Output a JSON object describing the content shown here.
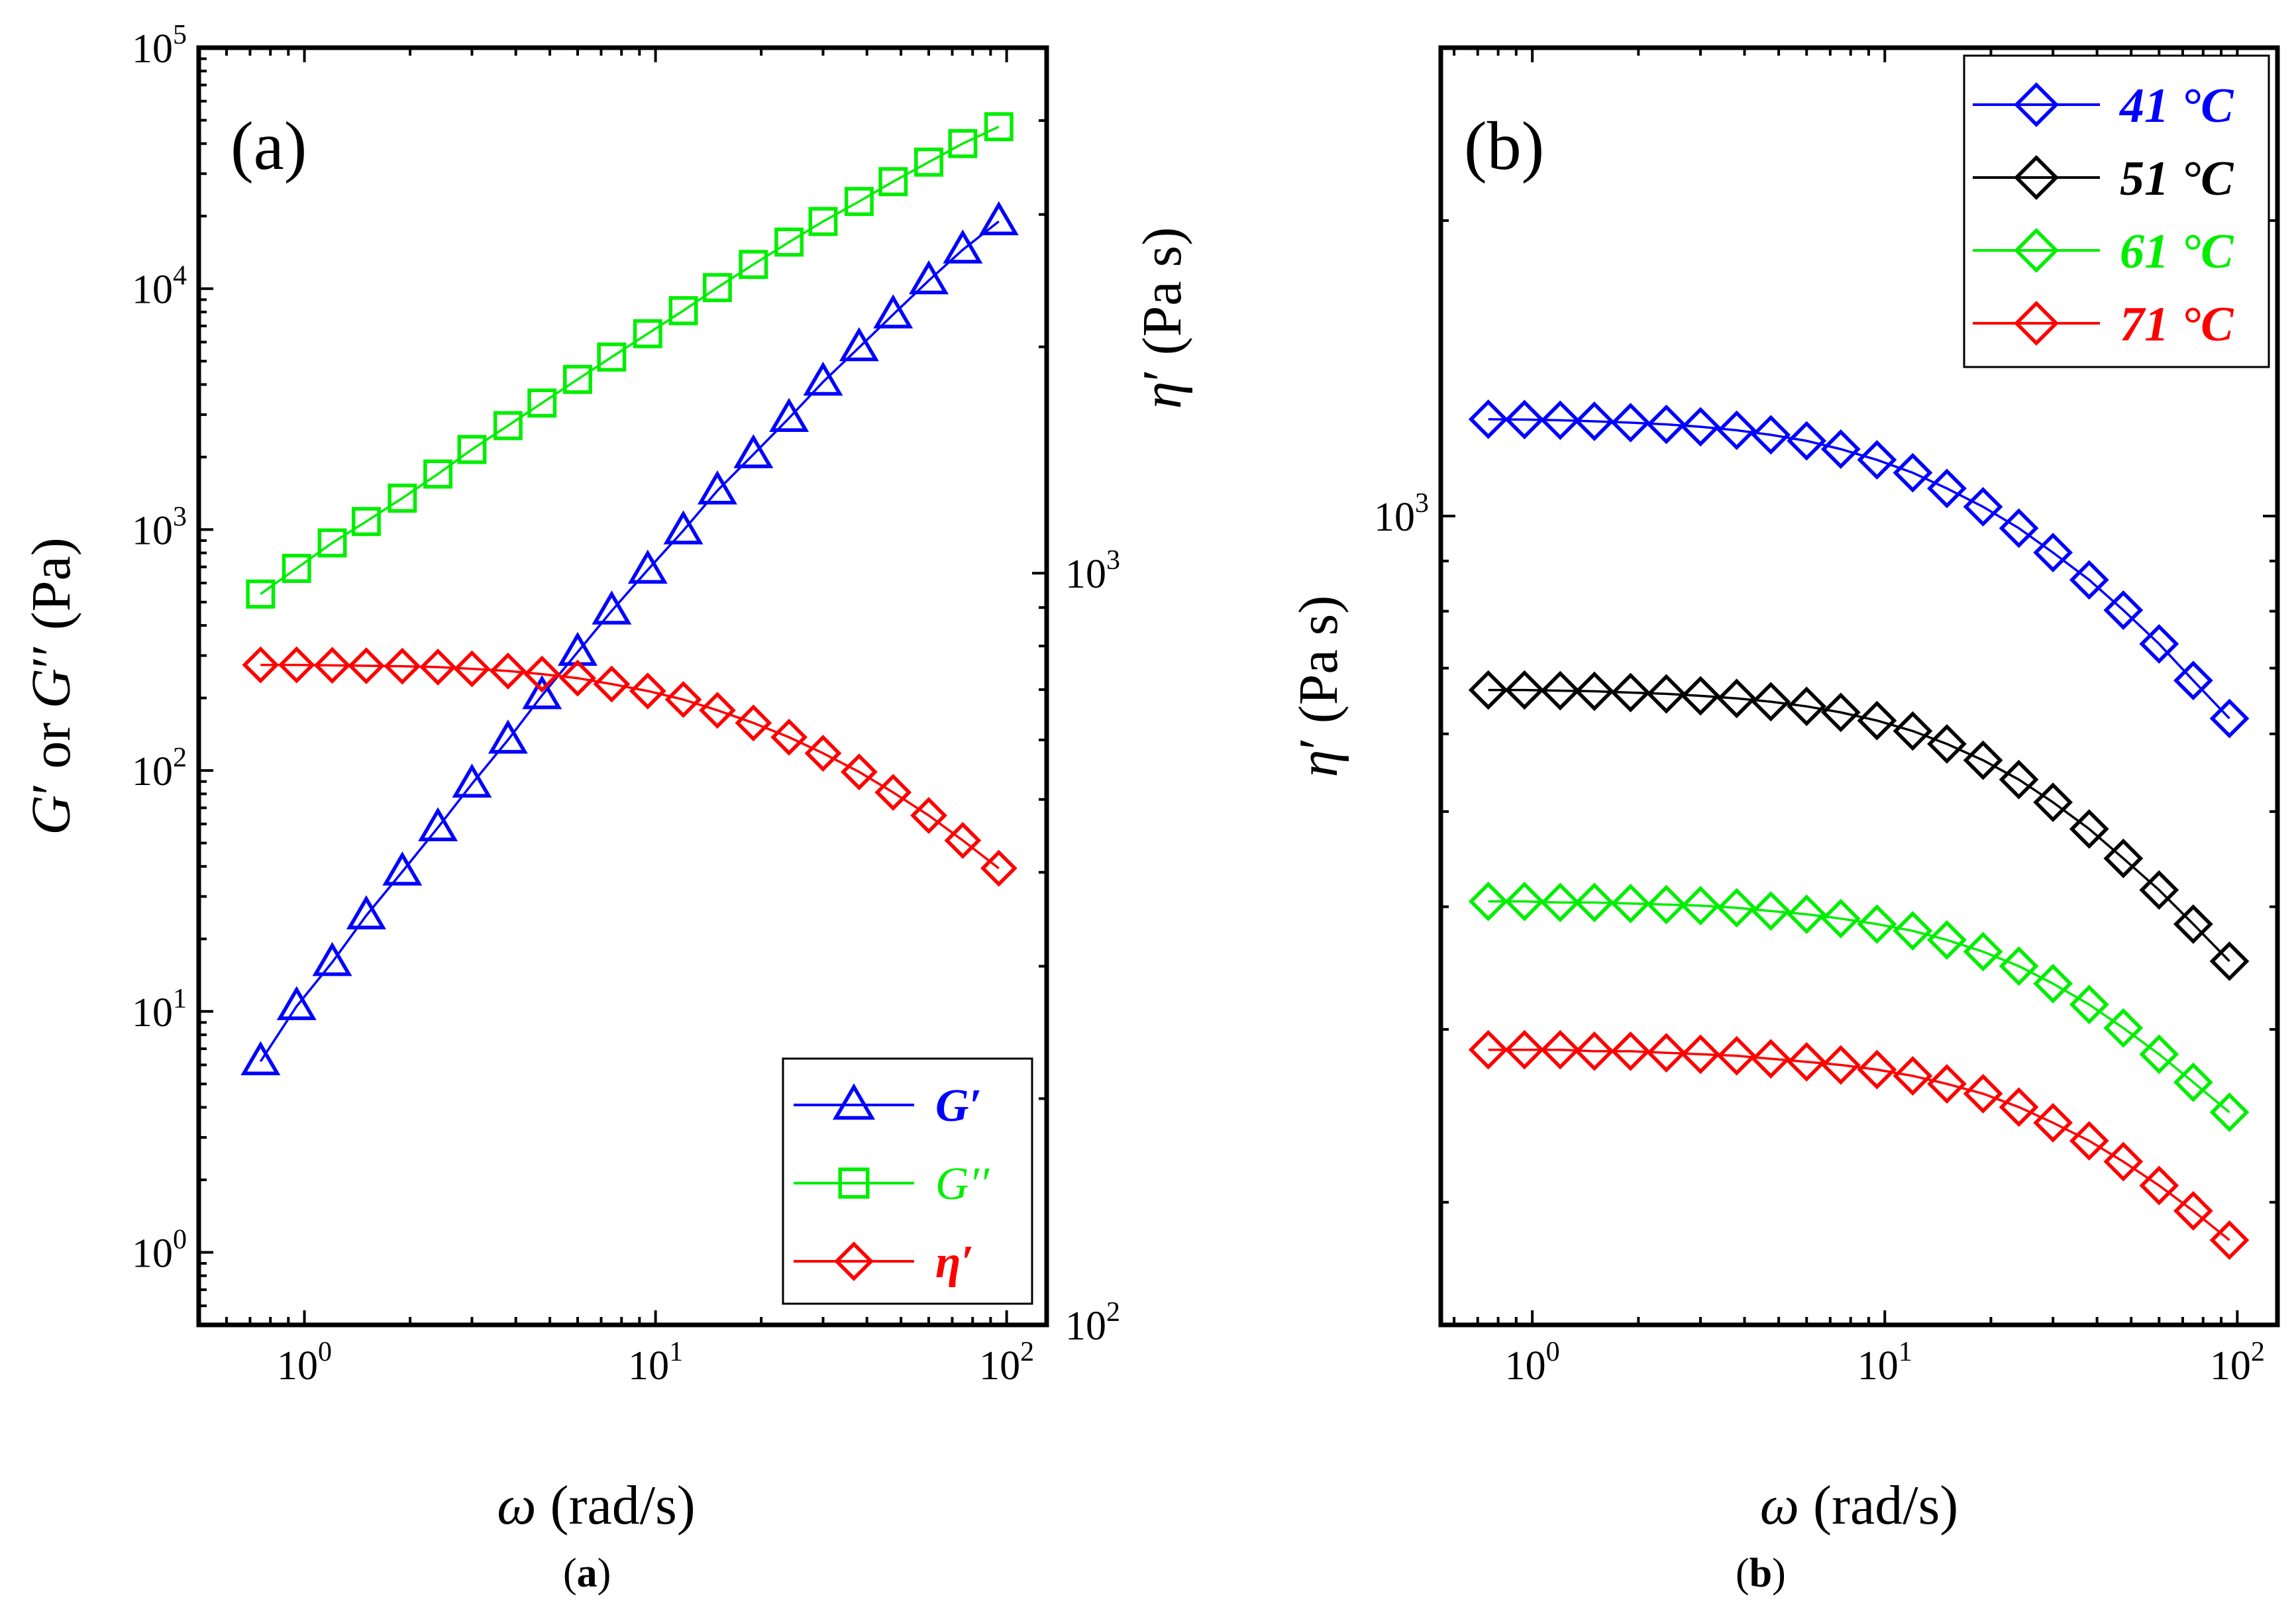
{
  "figure_captions": {
    "a_open": "(",
    "a": "a",
    "a_close": ")",
    "b_open": "(",
    "b": "b",
    "b_close": ")"
  },
  "chart_data": [
    {
      "id": "a",
      "type": "line",
      "panel_label": "(a)",
      "xlabel": {
        "symbol": "ω",
        "text": " (rad/s)"
      },
      "ylabel_left": {
        "g1": "G",
        "p1": "′",
        "or": " or ",
        "g2": "G",
        "p2": "′′",
        "unit": " (Pa)"
      },
      "ylabel_right": {
        "symbol": "η",
        "p": "′",
        "unit": " (Pa s)"
      },
      "x_scale": "log",
      "xlim": [
        0.5,
        130
      ],
      "x_ticks": [
        {
          "value": 1,
          "base": "10",
          "exp": "0"
        },
        {
          "value": 10,
          "base": "10",
          "exp": "1"
        },
        {
          "value": 100,
          "base": "10",
          "exp": "2"
        }
      ],
      "y_left_scale": "log",
      "y_left_lim": [
        0.5,
        100000
      ],
      "y_left_ticks": [
        {
          "value": 1,
          "base": "10",
          "exp": "0"
        },
        {
          "value": 10,
          "base": "10",
          "exp": "1"
        },
        {
          "value": 100,
          "base": "10",
          "exp": "2"
        },
        {
          "value": 1000,
          "base": "10",
          "exp": "3"
        },
        {
          "value": 10000,
          "base": "10",
          "exp": "4"
        },
        {
          "value": 100000,
          "base": "10",
          "exp": "5"
        }
      ],
      "y_right_scale": "log",
      "y_right_lim": [
        100,
        5000
      ],
      "y_right_ticks": [
        {
          "value": 100,
          "base": "10",
          "exp": "2"
        },
        {
          "value": 1000,
          "base": "10",
          "exp": "3"
        }
      ],
      "x": [
        0.75,
        0.95,
        1.2,
        1.5,
        1.9,
        2.4,
        3.0,
        3.8,
        4.75,
        6.0,
        7.5,
        9.5,
        12,
        15,
        19,
        24,
        30,
        38,
        47.5,
        60,
        75,
        95
      ],
      "legend_position": "bottom-right",
      "series": [
        {
          "name": "G′",
          "legend_style": "bold-italic",
          "axis": "left",
          "marker": "triangle",
          "color": "#0000ff",
          "values": [
            6.2,
            10.5,
            16,
            25,
            38,
            58,
            88,
            134,
            205,
            310,
            460,
            680,
            990,
            1450,
            2050,
            2900,
            4100,
            5700,
            7800,
            10800,
            14500,
            19000
          ]
        },
        {
          "name": "G′′",
          "legend_style": "italic",
          "axis": "left",
          "marker": "square",
          "color": "#00ee00",
          "values": [
            540,
            690,
            880,
            1080,
            1350,
            1700,
            2150,
            2700,
            3350,
            4200,
            5200,
            6500,
            8100,
            10100,
            12600,
            15600,
            19000,
            23000,
            27800,
            33500,
            40000,
            47000
          ]
        },
        {
          "name": "η′",
          "legend_style": "bold-italic",
          "axis": "right",
          "marker": "diamond",
          "color": "#ff0000",
          "values": [
            755,
            755,
            754,
            753,
            752,
            750,
            746,
            741,
            734,
            725,
            712,
            697,
            679,
            657,
            632,
            605,
            576,
            544,
            511,
            476,
            441,
            405
          ]
        }
      ]
    },
    {
      "id": "b",
      "type": "line",
      "panel_label": "(b)",
      "xlabel": {
        "symbol": "ω",
        "text": " (rad/s)"
      },
      "ylabel": {
        "symbol": "η",
        "p": "′",
        "unit": " (Pa s)"
      },
      "x_scale": "log",
      "xlim": [
        0.55,
        130
      ],
      "x_ticks": [
        {
          "value": 1,
          "base": "10",
          "exp": "0"
        },
        {
          "value": 10,
          "base": "10",
          "exp": "1"
        },
        {
          "value": 100,
          "base": "10",
          "exp": "2"
        }
      ],
      "y_scale": "log",
      "ylim": [
        150,
        3000
      ],
      "y_ticks": [
        {
          "value": 1000,
          "base": "10",
          "exp": "3"
        }
      ],
      "x": [
        0.75,
        0.95,
        1.2,
        1.5,
        1.9,
        2.4,
        3.0,
        3.8,
        4.75,
        6.0,
        7.5,
        9.5,
        12,
        15,
        19,
        24,
        30,
        38,
        47.5,
        60,
        75,
        95
      ],
      "legend_position": "top-right",
      "series": [
        {
          "name": "41 °C",
          "marker": "diamond",
          "color": "#0000ff",
          "values": [
            1255,
            1254,
            1252,
            1249,
            1245,
            1240,
            1233,
            1223,
            1210,
            1193,
            1170,
            1141,
            1107,
            1067,
            1022,
            972,
            918,
            861,
            802,
            741,
            680,
            622
          ]
        },
        {
          "name": "51 °C",
          "marker": "diamond",
          "color": "#000000",
          "values": [
            665,
            665,
            664,
            663,
            661,
            659,
            656,
            652,
            647,
            640,
            631,
            619,
            604,
            586,
            564,
            539,
            511,
            480,
            448,
            416,
            384,
            352
          ]
        },
        {
          "name": "61 °C",
          "marker": "diamond",
          "color": "#00ee00",
          "values": [
            405,
            405,
            404,
            404,
            403,
            402,
            401,
            399,
            396,
            393,
            389,
            384,
            378,
            370,
            360,
            348,
            334,
            318,
            301,
            283,
            265,
            247
          ]
        },
        {
          "name": "71 °C",
          "marker": "diamond",
          "color": "#ff0000",
          "values": [
            286,
            286,
            286,
            285,
            285,
            284,
            283,
            282,
            280,
            278,
            276,
            273,
            269,
            264,
            258,
            250,
            241,
            231,
            220,
            208,
            196,
            183
          ]
        }
      ]
    }
  ]
}
